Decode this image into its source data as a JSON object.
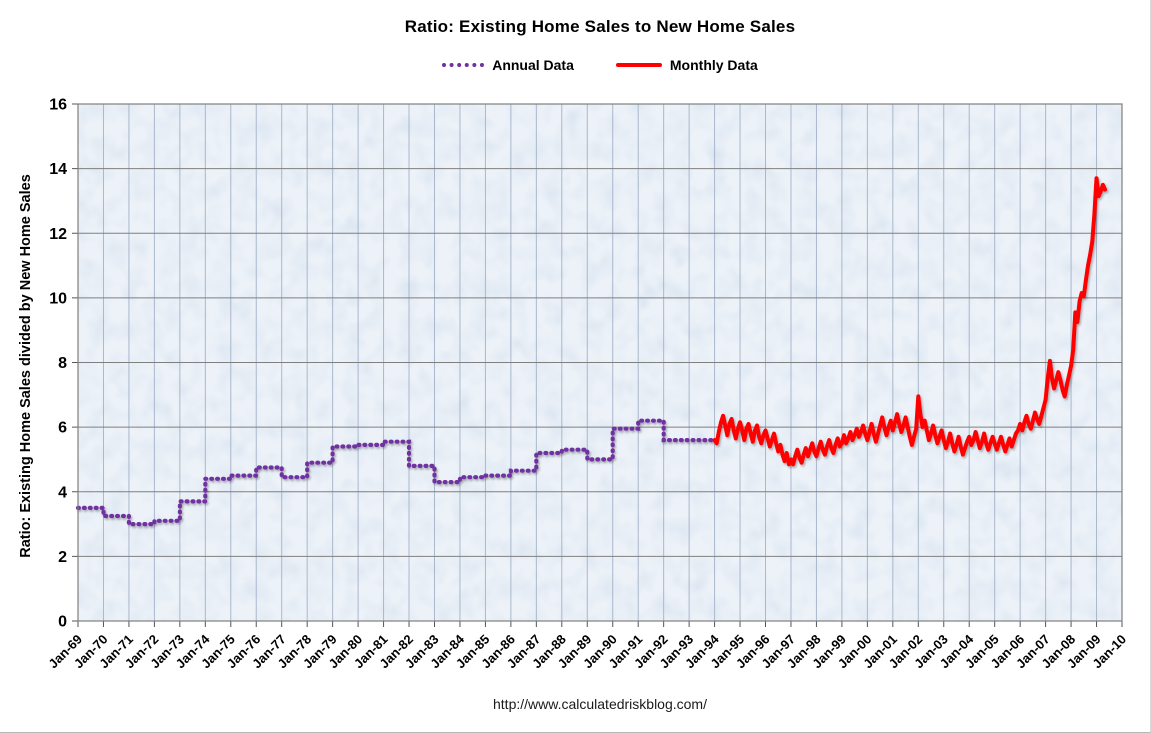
{
  "title": "Ratio: Existing Home Sales to New Home Sales",
  "footer_url": "http://www.calculatedriskblog.com/",
  "chart_data": {
    "type": "line",
    "title": "Ratio: Existing Home Sales to New Home Sales",
    "xlabel": "",
    "ylabel": "Ratio: Existing Home Sales divided by New Home Sales",
    "ylim": [
      0,
      16
    ],
    "ytick_step": 2,
    "grid": true,
    "legend_position": "top",
    "x_ticks": [
      "Jan-69",
      "Jan-70",
      "Jan-71",
      "Jan-72",
      "Jan-73",
      "Jan-74",
      "Jan-75",
      "Jan-76",
      "Jan-77",
      "Jan-78",
      "Jan-79",
      "Jan-80",
      "Jan-81",
      "Jan-82",
      "Jan-83",
      "Jan-84",
      "Jan-85",
      "Jan-86",
      "Jan-87",
      "Jan-88",
      "Jan-89",
      "Jan-90",
      "Jan-91",
      "Jan-92",
      "Jan-93",
      "Jan-94",
      "Jan-95",
      "Jan-96",
      "Jan-97",
      "Jan-98",
      "Jan-99",
      "Jan-00",
      "Jan-01",
      "Jan-02",
      "Jan-03",
      "Jan-04",
      "Jan-05",
      "Jan-06",
      "Jan-07",
      "Jan-08",
      "Jan-09",
      "Jan-10"
    ],
    "colors": {
      "plot_background": "#dbe5f1",
      "x_gridline": "#a9b7cd",
      "y_gridline": "#7f7f7f",
      "plot_border": "#7f7f7f",
      "text": "#000000"
    },
    "series": [
      {
        "name": "Annual Data",
        "color": "#7030A0",
        "style": "dotted-step",
        "start_year": 1969,
        "values": [
          3.5,
          3.25,
          3.0,
          3.1,
          3.7,
          4.4,
          4.5,
          4.75,
          4.45,
          4.9,
          5.4,
          5.45,
          5.55,
          4.8,
          4.3,
          4.45,
          4.5,
          4.65,
          5.2,
          5.3,
          5.0,
          5.95,
          6.2,
          5.6,
          5.6
        ]
      },
      {
        "name": "Monthly Data",
        "color": "#FF0000",
        "style": "solid",
        "start_year": 1994,
        "start_month": 1,
        "values": [
          5.6,
          5.5,
          5.85,
          6.15,
          6.35,
          6.05,
          5.75,
          6.1,
          6.25,
          5.9,
          5.65,
          5.95,
          6.15,
          5.9,
          5.6,
          5.95,
          6.1,
          5.8,
          5.55,
          5.9,
          6.05,
          5.7,
          5.5,
          5.75,
          5.9,
          5.65,
          5.4,
          5.6,
          5.8,
          5.5,
          5.25,
          5.45,
          5.15,
          4.95,
          5.2,
          4.85,
          5.0,
          4.85,
          5.1,
          5.3,
          5.05,
          4.9,
          5.15,
          5.35,
          5.1,
          5.3,
          5.5,
          5.25,
          5.1,
          5.35,
          5.55,
          5.3,
          5.15,
          5.4,
          5.6,
          5.35,
          5.2,
          5.45,
          5.65,
          5.4,
          5.5,
          5.75,
          5.5,
          5.65,
          5.85,
          5.6,
          5.75,
          5.95,
          5.7,
          5.85,
          6.05,
          5.8,
          5.6,
          5.85,
          6.1,
          5.8,
          5.55,
          5.8,
          6.05,
          6.3,
          6.0,
          5.75,
          6.0,
          6.2,
          5.9,
          6.15,
          6.4,
          6.1,
          5.85,
          6.05,
          6.3,
          6.0,
          5.7,
          5.45,
          5.7,
          5.95,
          6.95,
          6.4,
          6.0,
          6.2,
          5.9,
          5.6,
          5.8,
          6.05,
          5.75,
          5.5,
          5.7,
          5.9,
          5.6,
          5.35,
          5.55,
          5.8,
          5.5,
          5.25,
          5.45,
          5.7,
          5.4,
          5.15,
          5.35,
          5.55,
          5.7,
          5.45,
          5.6,
          5.85,
          5.6,
          5.35,
          5.55,
          5.8,
          5.5,
          5.3,
          5.5,
          5.7,
          5.5,
          5.3,
          5.5,
          5.7,
          5.45,
          5.25,
          5.45,
          5.65,
          5.4,
          5.6,
          5.8,
          5.9,
          6.1,
          5.9,
          6.15,
          6.35,
          6.1,
          5.95,
          6.2,
          6.45,
          6.25,
          6.1,
          6.35,
          6.6,
          6.85,
          7.5,
          8.05,
          7.5,
          7.2,
          7.45,
          7.7,
          7.45,
          7.15,
          6.95,
          7.3,
          7.6,
          7.9,
          8.4,
          9.55,
          9.25,
          9.9,
          10.15,
          10.05,
          10.55,
          11.0,
          11.35,
          11.75,
          12.6,
          13.7,
          13.15,
          13.3,
          13.5,
          13.35
        ]
      }
    ]
  }
}
